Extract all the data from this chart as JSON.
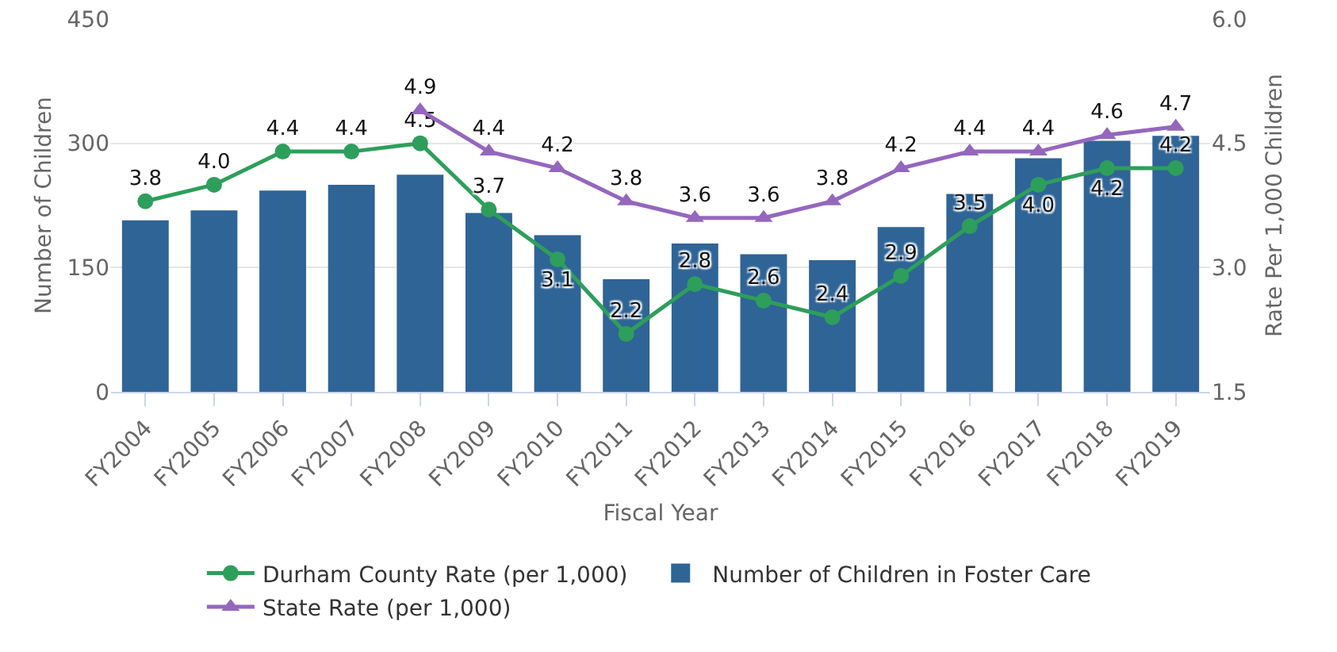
{
  "chart_data": {
    "type": "bar",
    "xlabel": "Fiscal Year",
    "ylabel": "Number of Children",
    "y2label": "Rate Per 1,000 Children",
    "categories": [
      "FY2004",
      "FY2005",
      "FY2006",
      "FY2007",
      "FY2008",
      "FY2009",
      "FY2010",
      "FY2011",
      "FY2012",
      "FY2013",
      "FY2014",
      "FY2015",
      "FY2016",
      "FY2017",
      "FY2018",
      "FY2019"
    ],
    "series": [
      {
        "name": "Durham County Rate (per 1,000)",
        "type": "line",
        "axis": "y2",
        "marker": "circle",
        "color": "#2e9e5b",
        "values": [
          3.8,
          4.0,
          4.4,
          4.4,
          4.5,
          3.7,
          3.1,
          2.2,
          2.8,
          2.6,
          2.4,
          2.9,
          3.5,
          4.0,
          4.2,
          4.2
        ],
        "value_labels": [
          "3.8",
          "4.0",
          "4.4",
          "4.4",
          "4.5",
          "3.7",
          "3.1",
          "2.2",
          "2.8",
          "2.6",
          "2.4",
          "2.9",
          "3.5",
          "4.0",
          "4.2",
          "4.2"
        ]
      },
      {
        "name": "Number of Children in Foster Care",
        "color": "#2f6497",
        "values": [
          207,
          219,
          243,
          250,
          262,
          216,
          189,
          136,
          179,
          166,
          159,
          199,
          239,
          282,
          303,
          309
        ]
      },
      {
        "name": "State Rate (per 1,000)",
        "type": "line",
        "axis": "y2",
        "marker": "triangle",
        "color": "#9467bd",
        "values": [
          null,
          null,
          null,
          null,
          4.9,
          4.4,
          4.2,
          3.8,
          3.6,
          3.6,
          3.8,
          4.2,
          4.4,
          4.4,
          4.6,
          4.7
        ],
        "value_labels": [
          null,
          null,
          null,
          null,
          "4.9",
          "4.4",
          "4.2",
          "3.8",
          "3.6",
          "3.6",
          "3.8",
          "4.2",
          "4.4",
          "4.4",
          "4.6",
          "4.7"
        ]
      }
    ],
    "ylim": [
      0,
      450
    ],
    "yticks": [
      0,
      150,
      300,
      450
    ],
    "y2lim": [
      1.5,
      6.0
    ],
    "y2ticks": [
      {
        "value": 1.5,
        "label": "1.5"
      },
      {
        "value": 3,
        "label": "3.0"
      },
      {
        "value": 4.5,
        "label": "4.5"
      },
      {
        "value": 6,
        "label": "6.0"
      }
    ],
    "grid": "y",
    "legend": "bottom"
  }
}
